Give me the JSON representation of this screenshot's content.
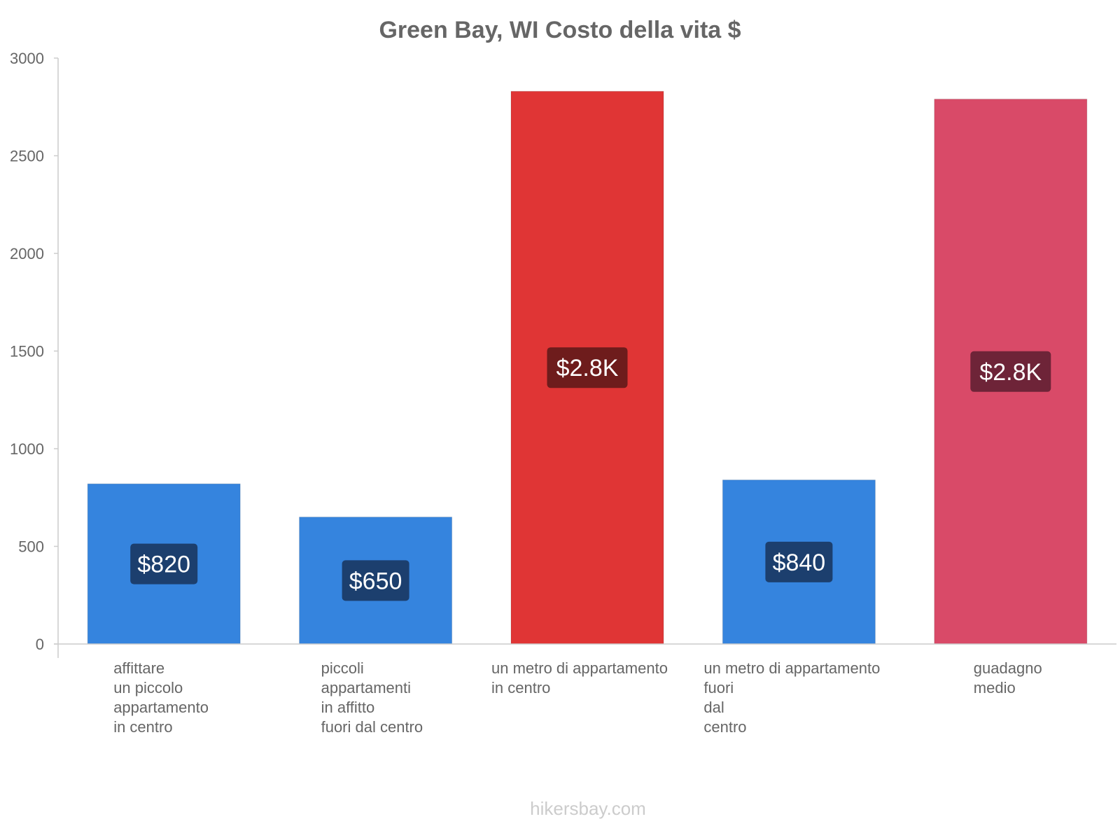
{
  "chart_data": {
    "type": "bar",
    "title": "Green Bay, WI Costo della vita $",
    "xlabel": "",
    "ylabel": "",
    "ylim": [
      0,
      3000
    ],
    "yticks": [
      0,
      500,
      1000,
      1500,
      2000,
      2500,
      3000
    ],
    "grid": false,
    "legend": "none",
    "categories": [
      [
        "affittare",
        "un piccolo",
        "appartamento",
        "in centro"
      ],
      [
        "piccoli",
        "appartamenti",
        "in affitto",
        "fuori dal centro"
      ],
      [
        "un metro di appartamento",
        "in centro"
      ],
      [
        "un metro di appartamento",
        "fuori",
        "dal",
        "centro"
      ],
      [
        "guadagno",
        "medio"
      ]
    ],
    "values": [
      820,
      650,
      2830,
      840,
      2790
    ],
    "value_labels": [
      "$820",
      "$650",
      "$2.8K",
      "$840",
      "$2.8K"
    ],
    "bar_colors": [
      "#3584de",
      "#3584de",
      "#e03535",
      "#3584de",
      "#d94a68"
    ],
    "label_box_colors": [
      "#1c3f6e",
      "#1c3f6e",
      "#6e1c1c",
      "#1c3f6e",
      "#6e2438"
    ]
  },
  "watermark": "hikersbay.com"
}
